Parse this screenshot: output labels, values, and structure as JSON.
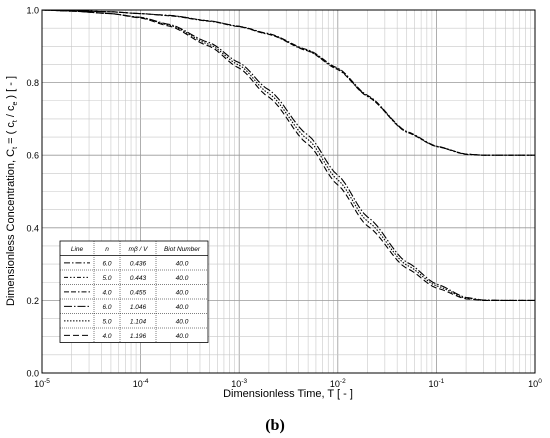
{
  "chart_data": {
    "type": "line",
    "x_scale": "log",
    "xlim": [
      1e-05,
      1
    ],
    "ylim": [
      0.0,
      1.0
    ],
    "grid": true,
    "xlabel": "Dimensionless Time, T  [ - ]",
    "ylabel": "Dimensionless Concentration, C",
    "ylabel_sub_t": "t",
    "ylabel_mid": " = ( c",
    "ylabel_sub_t2": "t",
    "ylabel_mid2": " / c",
    "ylabel_sub_e": "e",
    "ylabel_end": " ) [ - ]",
    "x_tick_base": "10",
    "x_tick_exponents": [
      "-5",
      "-4",
      "-3",
      "-2",
      "-1",
      "0"
    ],
    "y_ticks": [
      "0.0",
      "0.2",
      "0.4",
      "0.6",
      "0.8",
      "1.0"
    ],
    "subfigure_label": "(b)",
    "legend": {
      "placement": "bottom-left",
      "headers": [
        "Line",
        "n",
        "mβ / V",
        "Biot Number"
      ],
      "rows": [
        {
          "n": "6.0",
          "mbv": "0.436",
          "biot": "40.0",
          "dash": "6,2,1.5,2"
        },
        {
          "n": "5.0",
          "mbv": "0.443",
          "biot": "40.0",
          "dash": "4,2,1.5,2,1.5,2"
        },
        {
          "n": "4.0",
          "mbv": "0.455",
          "biot": "40.0",
          "dash": "5,2,5,2,1.5,2"
        },
        {
          "n": "6.0",
          "mbv": "1.046",
          "biot": "40.0",
          "dash": "8,2,1.5,2"
        },
        {
          "n": "5.0",
          "mbv": "1.104",
          "biot": "40.0",
          "dash": "1.5,1.5"
        },
        {
          "n": "4.0",
          "mbv": "1.196",
          "biot": "40.0",
          "dash": "6,3"
        }
      ]
    },
    "x": [
      1e-05,
      2e-05,
      5e-05,
      0.0001,
      0.0002,
      0.0005,
      0.001,
      0.002,
      0.005,
      0.01,
      0.02,
      0.05,
      0.1,
      0.2,
      0.3,
      0.5,
      1
    ],
    "series": [
      {
        "values": [
          1.0,
          0.998,
          0.995,
          0.99,
          0.985,
          0.97,
          0.955,
          0.935,
          0.89,
          0.84,
          0.765,
          0.665,
          0.625,
          0.603,
          0.6,
          0.6,
          0.6
        ],
        "dash": "6,2,1.5,2"
      },
      {
        "values": [
          1.0,
          0.998,
          0.995,
          0.99,
          0.985,
          0.97,
          0.955,
          0.934,
          0.888,
          0.838,
          0.763,
          0.664,
          0.624,
          0.603,
          0.6,
          0.6,
          0.6
        ],
        "dash": "4,2,1.5,2,1.5,2"
      },
      {
        "values": [
          1.0,
          0.998,
          0.995,
          0.99,
          0.984,
          0.969,
          0.954,
          0.933,
          0.887,
          0.836,
          0.762,
          0.663,
          0.624,
          0.602,
          0.6,
          0.6,
          0.6
        ],
        "dash": "5,2,5,2,1.5,2"
      },
      {
        "values": [
          1.0,
          0.997,
          0.99,
          0.98,
          0.96,
          0.91,
          0.855,
          0.78,
          0.655,
          0.545,
          0.43,
          0.305,
          0.245,
          0.208,
          0.201,
          0.2,
          0.2
        ],
        "dash": "8,2,1.5,2"
      },
      {
        "values": [
          1.0,
          0.997,
          0.99,
          0.979,
          0.958,
          0.905,
          0.848,
          0.77,
          0.643,
          0.532,
          0.418,
          0.297,
          0.24,
          0.206,
          0.2,
          0.2,
          0.2
        ],
        "dash": "1.5,1.5"
      },
      {
        "values": [
          1.0,
          0.997,
          0.99,
          0.978,
          0.955,
          0.9,
          0.84,
          0.76,
          0.63,
          0.518,
          0.405,
          0.288,
          0.234,
          0.204,
          0.2,
          0.2,
          0.2
        ],
        "dash": "6,3"
      }
    ]
  }
}
